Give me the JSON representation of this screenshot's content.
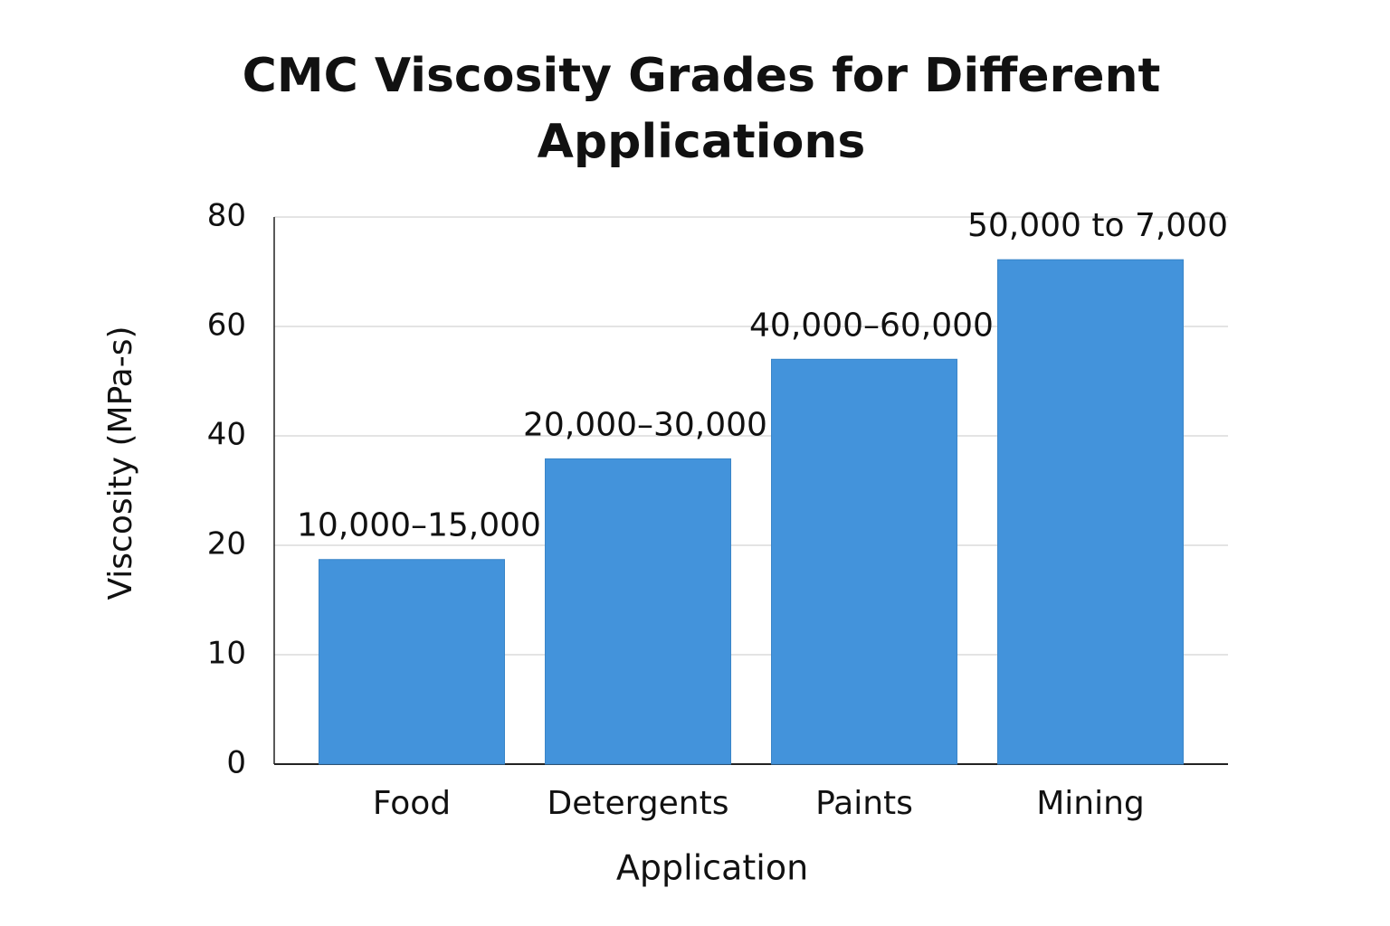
{
  "chart_data": {
    "type": "bar",
    "title": "CMC Viscosity Grades for Different Applications",
    "x_label": "Application",
    "y_label": "Viscosity (MPa-s)",
    "categories": [
      "Food",
      "Detergents",
      "Paints",
      "Mining"
    ],
    "values": [
      18.7,
      35.8,
      54,
      72.2
    ],
    "annotations": [
      "10,000–15,000",
      "20,000–30,000",
      "40,000–60,000",
      "50,000 to 7,000"
    ],
    "color": "#4393db",
    "ylim": [
      0,
      80
    ],
    "yticks": [
      0,
      10,
      20,
      40,
      60,
      80
    ],
    "grid": true
  }
}
